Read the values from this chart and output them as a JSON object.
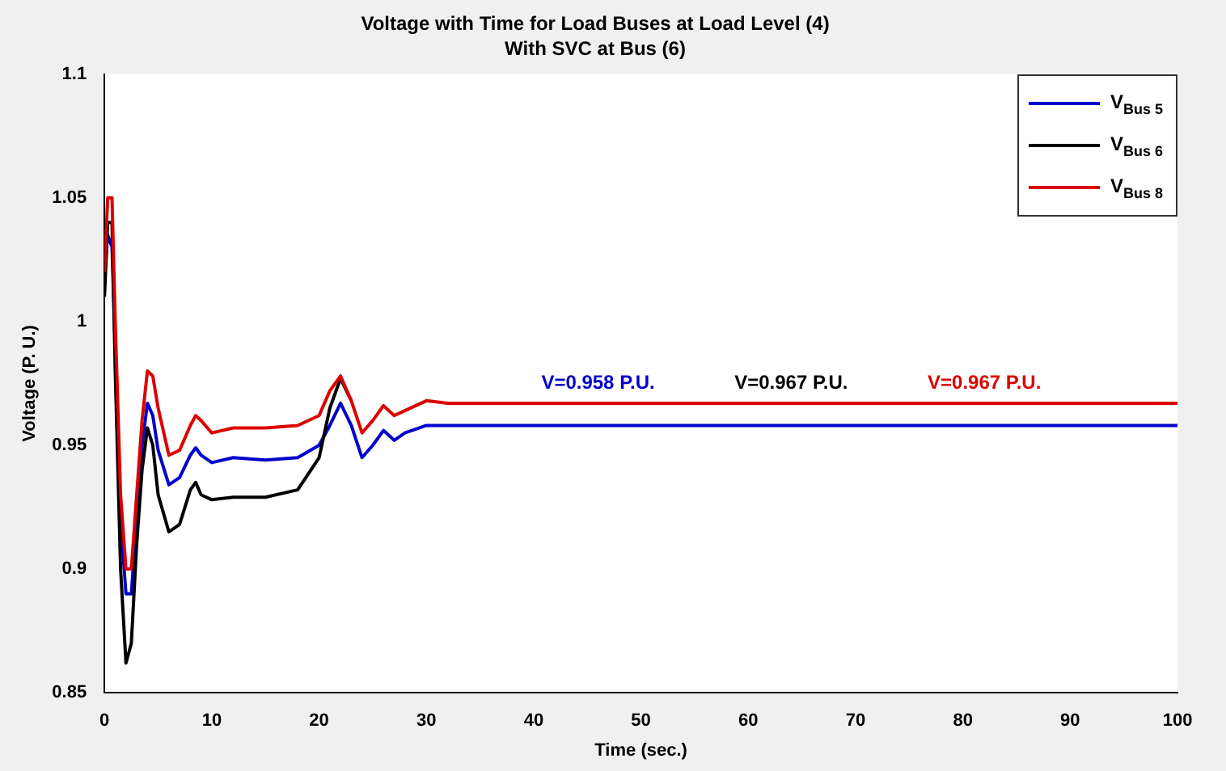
{
  "chart_data": {
    "type": "line",
    "title": "Voltage with Time for Load Buses at Load Level (4)",
    "subtitle": "With SVC at Bus (6)",
    "xlabel": "Time (sec.)",
    "ylabel": "Voltage (P. U.)",
    "xlim": [
      0,
      100
    ],
    "xticks": [
      0,
      10,
      20,
      30,
      40,
      50,
      60,
      70,
      80,
      90,
      100
    ],
    "ylim": [
      0.85,
      1.1
    ],
    "yticks": [
      0.85,
      0.9,
      0.95,
      1,
      1.05,
      1.1
    ],
    "grid": false,
    "legend": "top right",
    "marker": "none",
    "line_style": "solid",
    "x": [
      0,
      0.3,
      0.7,
      1,
      1.5,
      2,
      2.5,
      3,
      3.5,
      4,
      4.5,
      5,
      6,
      7,
      8,
      8.5,
      9,
      10,
      12,
      15,
      18,
      20,
      21,
      22,
      23,
      24,
      25,
      26,
      27,
      28,
      30,
      32,
      100
    ],
    "series": [
      {
        "name": "V$_{Bus 5}$",
        "color": "#0000cc",
        "values": [
          1.02,
          1.035,
          1.03,
          0.99,
          0.92,
          0.89,
          0.89,
          0.92,
          0.95,
          0.967,
          0.962,
          0.948,
          0.934,
          0.937,
          0.946,
          0.949,
          0.946,
          0.943,
          0.945,
          0.944,
          0.945,
          0.95,
          0.958,
          0.967,
          0.958,
          0.945,
          0.95,
          0.956,
          0.952,
          0.955,
          0.958,
          0.958,
          0.958
        ]
      },
      {
        "name": "V$_{Bus 6}$",
        "color": "#000000",
        "values": [
          1.01,
          1.04,
          1.04,
          0.98,
          0.9,
          0.862,
          0.87,
          0.91,
          0.94,
          0.957,
          0.95,
          0.93,
          0.915,
          0.918,
          0.932,
          0.935,
          0.93,
          0.928,
          0.929,
          0.929,
          0.932,
          0.945,
          0.965,
          0.977,
          0.968,
          null,
          null,
          null,
          null,
          null,
          null,
          null,
          null
        ]
      },
      {
        "name": "V$_{Bus 8}$",
        "color": "#dd0000",
        "values": [
          1.02,
          1.05,
          1.05,
          1.0,
          0.93,
          0.9,
          0.9,
          0.93,
          0.96,
          0.98,
          0.978,
          0.965,
          0.946,
          0.948,
          0.958,
          0.962,
          0.96,
          0.955,
          0.957,
          0.957,
          0.958,
          0.962,
          0.972,
          0.978,
          0.968,
          0.955,
          0.96,
          0.966,
          0.962,
          0.964,
          0.968,
          0.967,
          0.967
        ]
      }
    ],
    "annotations": [
      "V=0.958 P.U.",
      "V=0.967 P.U.",
      "V=0.967 P.U."
    ]
  }
}
